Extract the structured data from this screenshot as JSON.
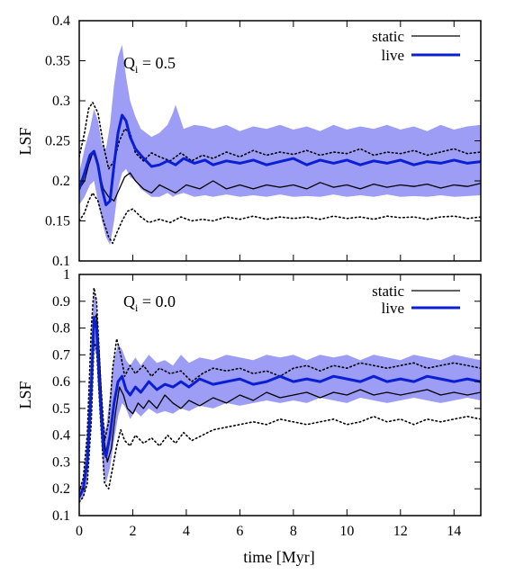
{
  "chart_data": [
    {
      "type": "line",
      "annotation": {
        "main": "Q",
        "sub": "i",
        "rest": " = 0.5"
      },
      "xlabel": "",
      "ylabel": "LSF",
      "xlim": [
        0,
        15
      ],
      "ylim": [
        0.1,
        0.4
      ],
      "xticks": [
        0,
        2,
        4,
        6,
        8,
        10,
        12,
        14
      ],
      "xtick_labels": [],
      "yticks": [
        0.1,
        0.15,
        0.2,
        0.25,
        0.3,
        0.35,
        0.4
      ],
      "ytick_labels": [
        "0.1",
        "0.15",
        "0.2",
        "0.25",
        "0.3",
        "0.35",
        "0.4"
      ],
      "legend_position": "top-right",
      "legend": [
        "static",
        "live"
      ],
      "series": [
        {
          "name": "static",
          "color": "#000000",
          "style": "solid",
          "x": [
            0,
            0.2,
            0.35,
            0.5,
            0.6,
            0.75,
            0.9,
            1.1,
            1.3,
            1.5,
            1.7,
            1.9,
            2.1,
            2.4,
            2.7,
            3.0,
            3.3,
            3.6,
            4.0,
            4.5,
            5.0,
            5.5,
            6.0,
            6.5,
            7.0,
            7.5,
            8.0,
            8.5,
            9.0,
            9.5,
            10.0,
            10.5,
            11.0,
            11.5,
            12.0,
            12.5,
            13.0,
            13.5,
            14.0,
            14.5,
            15.0
          ],
          "y": [
            0.19,
            0.2,
            0.22,
            0.235,
            0.23,
            0.21,
            0.19,
            0.18,
            0.175,
            0.19,
            0.205,
            0.21,
            0.2,
            0.19,
            0.185,
            0.195,
            0.19,
            0.185,
            0.195,
            0.19,
            0.2,
            0.19,
            0.195,
            0.19,
            0.195,
            0.192,
            0.195,
            0.19,
            0.198,
            0.192,
            0.195,
            0.19,
            0.196,
            0.192,
            0.195,
            0.193,
            0.196,
            0.191,
            0.195,
            0.193,
            0.197
          ]
        },
        {
          "name": "static-upper",
          "color": "#000000",
          "style": "dotted",
          "x": [
            0,
            0.2,
            0.35,
            0.5,
            0.7,
            0.9,
            1.1,
            1.3,
            1.5,
            1.7,
            1.9,
            2.1,
            2.4,
            2.7,
            3.0,
            3.4,
            3.8,
            4.2,
            4.6,
            5.0,
            5.5,
            6.0,
            6.5,
            7.0,
            7.5,
            8.0,
            8.5,
            9.0,
            9.5,
            10.0,
            10.5,
            11.0,
            11.5,
            12.0,
            12.5,
            13.0,
            13.5,
            14.0,
            14.5,
            15.0
          ],
          "y": [
            0.23,
            0.26,
            0.29,
            0.298,
            0.285,
            0.245,
            0.215,
            0.225,
            0.25,
            0.265,
            0.26,
            0.235,
            0.225,
            0.235,
            0.23,
            0.225,
            0.235,
            0.225,
            0.232,
            0.228,
            0.236,
            0.23,
            0.238,
            0.232,
            0.236,
            0.233,
            0.238,
            0.232,
            0.236,
            0.234,
            0.24,
            0.232,
            0.236,
            0.234,
            0.238,
            0.232,
            0.236,
            0.24,
            0.234,
            0.236
          ]
        },
        {
          "name": "static-lower",
          "color": "#000000",
          "style": "dotted",
          "x": [
            0,
            0.2,
            0.35,
            0.5,
            0.7,
            0.9,
            1.1,
            1.25,
            1.4,
            1.6,
            1.8,
            2.0,
            2.3,
            2.6,
            3.0,
            3.4,
            3.8,
            4.2,
            4.6,
            5.0,
            5.5,
            6.0,
            6.5,
            7.0,
            7.5,
            8.0,
            8.5,
            9.0,
            9.5,
            10.0,
            10.5,
            11.0,
            11.5,
            12.0,
            12.5,
            13.0,
            13.5,
            14.0,
            14.5,
            15.0
          ],
          "y": [
            0.15,
            0.16,
            0.175,
            0.185,
            0.175,
            0.15,
            0.13,
            0.122,
            0.135,
            0.15,
            0.162,
            0.165,
            0.155,
            0.148,
            0.152,
            0.148,
            0.155,
            0.15,
            0.152,
            0.15,
            0.155,
            0.152,
            0.156,
            0.152,
            0.155,
            0.153,
            0.155,
            0.152,
            0.156,
            0.153,
            0.155,
            0.152,
            0.156,
            0.154,
            0.155,
            0.152,
            0.155,
            0.156,
            0.153,
            0.155
          ]
        },
        {
          "name": "live",
          "color": "#0a1fd1",
          "style": "solid",
          "x": [
            0,
            0.2,
            0.4,
            0.55,
            0.7,
            0.85,
            1.0,
            1.15,
            1.3,
            1.45,
            1.6,
            1.75,
            1.9,
            2.1,
            2.3,
            2.5,
            2.7,
            3.0,
            3.3,
            3.6,
            3.9,
            4.3,
            4.7,
            5.0,
            5.5,
            6.0,
            6.5,
            7.0,
            7.5,
            8.0,
            8.5,
            9.0,
            9.5,
            10.0,
            10.5,
            11.0,
            11.5,
            12.0,
            12.5,
            13.0,
            13.5,
            14.0,
            14.5,
            15.0
          ],
          "y": [
            0.19,
            0.21,
            0.232,
            0.237,
            0.22,
            0.19,
            0.17,
            0.175,
            0.22,
            0.26,
            0.282,
            0.275,
            0.255,
            0.24,
            0.232,
            0.225,
            0.218,
            0.22,
            0.225,
            0.22,
            0.228,
            0.222,
            0.226,
            0.22,
            0.225,
            0.222,
            0.226,
            0.22,
            0.224,
            0.228,
            0.22,
            0.226,
            0.222,
            0.226,
            0.22,
            0.225,
            0.222,
            0.226,
            0.22,
            0.224,
            0.222,
            0.226,
            0.222,
            0.224
          ]
        }
      ],
      "band": {
        "name": "live-range",
        "color": "#8c8cf5",
        "x": [
          0,
          0.2,
          0.4,
          0.55,
          0.7,
          0.85,
          1.0,
          1.15,
          1.3,
          1.45,
          1.6,
          1.75,
          1.9,
          2.1,
          2.3,
          2.5,
          2.7,
          3.0,
          3.3,
          3.5,
          3.6,
          3.9,
          4.3,
          4.7,
          5.0,
          5.5,
          6.0,
          6.5,
          7.0,
          7.5,
          8.0,
          8.5,
          9.0,
          9.5,
          10.0,
          10.5,
          11.0,
          11.5,
          12.0,
          12.5,
          13.0,
          13.5,
          14.0,
          14.5,
          15.0
        ],
        "upper": [
          0.21,
          0.24,
          0.265,
          0.29,
          0.275,
          0.245,
          0.24,
          0.27,
          0.32,
          0.355,
          0.37,
          0.33,
          0.3,
          0.28,
          0.265,
          0.26,
          0.255,
          0.26,
          0.27,
          0.285,
          0.295,
          0.265,
          0.27,
          0.268,
          0.265,
          0.27,
          0.262,
          0.268,
          0.265,
          0.27,
          0.264,
          0.268,
          0.262,
          0.27,
          0.264,
          0.268,
          0.265,
          0.27,
          0.264,
          0.268,
          0.262,
          0.27,
          0.264,
          0.268,
          0.27
        ],
        "lower": [
          0.17,
          0.18,
          0.195,
          0.2,
          0.175,
          0.15,
          0.13,
          0.12,
          0.15,
          0.19,
          0.21,
          0.215,
          0.205,
          0.2,
          0.19,
          0.185,
          0.18,
          0.18,
          0.185,
          0.18,
          0.182,
          0.185,
          0.18,
          0.182,
          0.18,
          0.183,
          0.18,
          0.182,
          0.18,
          0.183,
          0.18,
          0.181,
          0.18,
          0.183,
          0.18,
          0.182,
          0.18,
          0.183,
          0.18,
          0.181,
          0.18,
          0.182,
          0.18,
          0.181,
          0.182
        ]
      }
    },
    {
      "type": "line",
      "annotation": {
        "main": "Q",
        "sub": "i",
        "rest": " = 0.0"
      },
      "xlabel": "time [Myr]",
      "ylabel": "LSF",
      "xlim": [
        0,
        15
      ],
      "ylim": [
        0.1,
        1.0
      ],
      "xticks": [
        0,
        2,
        4,
        6,
        8,
        10,
        12,
        14
      ],
      "xtick_labels": [
        "0",
        "2",
        "4",
        "6",
        "8",
        "10",
        "12",
        "14"
      ],
      "yticks": [
        0.1,
        0.2,
        0.3,
        0.4,
        0.5,
        0.6,
        0.7,
        0.8,
        0.9,
        1.0
      ],
      "ytick_labels": [
        "0.1",
        "0.2",
        "0.3",
        "0.4",
        "0.5",
        "0.6",
        "0.7",
        "0.8",
        "0.9",
        "1"
      ],
      "legend_position": "top-right",
      "legend": [
        "static",
        "live"
      ],
      "series": [
        {
          "name": "static",
          "color": "#000000",
          "style": "solid",
          "x": [
            0,
            0.15,
            0.3,
            0.45,
            0.55,
            0.65,
            0.75,
            0.9,
            1.05,
            1.2,
            1.35,
            1.5,
            1.65,
            1.8,
            2.0,
            2.2,
            2.4,
            2.6,
            2.9,
            3.2,
            3.5,
            3.8,
            4.1,
            4.5,
            5.0,
            5.5,
            6.0,
            6.5,
            7.0,
            7.5,
            8.0,
            8.5,
            9.0,
            9.5,
            10.0,
            10.5,
            11.0,
            11.5,
            12.0,
            12.5,
            13.0,
            13.5,
            14.0,
            14.5,
            15.0
          ],
          "y": [
            0.17,
            0.2,
            0.3,
            0.55,
            0.83,
            0.85,
            0.7,
            0.4,
            0.3,
            0.35,
            0.48,
            0.58,
            0.55,
            0.5,
            0.48,
            0.52,
            0.5,
            0.53,
            0.5,
            0.55,
            0.52,
            0.5,
            0.53,
            0.51,
            0.54,
            0.52,
            0.55,
            0.53,
            0.56,
            0.54,
            0.55,
            0.56,
            0.54,
            0.56,
            0.55,
            0.57,
            0.55,
            0.56,
            0.55,
            0.56,
            0.57,
            0.55,
            0.56,
            0.55,
            0.56
          ]
        },
        {
          "name": "static-upper",
          "color": "#000000",
          "style": "dotted",
          "x": [
            0,
            0.15,
            0.3,
            0.45,
            0.55,
            0.65,
            0.8,
            0.95,
            1.1,
            1.25,
            1.4,
            1.55,
            1.7,
            1.9,
            2.1,
            2.4,
            2.7,
            3.0,
            3.4,
            3.8,
            4.2,
            4.6,
            5.0,
            5.5,
            6.0,
            6.5,
            7.0,
            7.5,
            8.0,
            8.5,
            9.0,
            9.5,
            10.0,
            10.5,
            11.0,
            11.5,
            12.0,
            12.5,
            13.0,
            13.5,
            14.0,
            14.5,
            15.0
          ],
          "y": [
            0.19,
            0.24,
            0.4,
            0.8,
            0.95,
            0.9,
            0.6,
            0.38,
            0.45,
            0.65,
            0.76,
            0.7,
            0.62,
            0.66,
            0.63,
            0.66,
            0.62,
            0.65,
            0.63,
            0.64,
            0.6,
            0.63,
            0.65,
            0.64,
            0.65,
            0.63,
            0.64,
            0.62,
            0.65,
            0.66,
            0.64,
            0.66,
            0.65,
            0.67,
            0.66,
            0.65,
            0.66,
            0.67,
            0.65,
            0.66,
            0.67,
            0.66,
            0.65
          ]
        },
        {
          "name": "static-lower",
          "color": "#000000",
          "style": "dotted",
          "x": [
            0,
            0.15,
            0.3,
            0.45,
            0.55,
            0.65,
            0.8,
            0.95,
            1.1,
            1.25,
            1.4,
            1.55,
            1.7,
            1.9,
            2.1,
            2.4,
            2.7,
            3.0,
            3.3,
            3.6,
            3.9,
            4.2,
            4.6,
            5.0,
            5.5,
            6.0,
            6.5,
            7.0,
            7.5,
            8.0,
            8.5,
            9.0,
            9.5,
            10.0,
            10.5,
            11.0,
            11.5,
            12.0,
            12.5,
            13.0,
            13.5,
            14.0,
            14.5,
            15.0
          ],
          "y": [
            0.15,
            0.17,
            0.22,
            0.45,
            0.75,
            0.72,
            0.45,
            0.22,
            0.2,
            0.28,
            0.36,
            0.42,
            0.38,
            0.36,
            0.4,
            0.37,
            0.39,
            0.36,
            0.4,
            0.37,
            0.41,
            0.38,
            0.4,
            0.42,
            0.43,
            0.44,
            0.45,
            0.44,
            0.46,
            0.45,
            0.44,
            0.45,
            0.46,
            0.44,
            0.45,
            0.47,
            0.45,
            0.46,
            0.44,
            0.46,
            0.45,
            0.46,
            0.47,
            0.46
          ]
        },
        {
          "name": "live",
          "color": "#0a1fd1",
          "style": "solid",
          "x": [
            0,
            0.15,
            0.3,
            0.45,
            0.55,
            0.65,
            0.75,
            0.9,
            1.0,
            1.15,
            1.3,
            1.45,
            1.6,
            1.75,
            1.9,
            2.1,
            2.3,
            2.6,
            2.9,
            3.2,
            3.5,
            3.8,
            4.1,
            4.5,
            5.0,
            5.5,
            6.0,
            6.5,
            7.0,
            7.5,
            8.0,
            8.5,
            9.0,
            9.5,
            10.0,
            10.5,
            11.0,
            11.5,
            12.0,
            12.5,
            13.0,
            13.5,
            14.0,
            14.5,
            15.0
          ],
          "y": [
            0.17,
            0.2,
            0.3,
            0.58,
            0.84,
            0.8,
            0.6,
            0.35,
            0.32,
            0.4,
            0.52,
            0.6,
            0.62,
            0.57,
            0.55,
            0.58,
            0.56,
            0.6,
            0.57,
            0.59,
            0.58,
            0.6,
            0.58,
            0.61,
            0.59,
            0.6,
            0.61,
            0.59,
            0.6,
            0.62,
            0.6,
            0.61,
            0.6,
            0.62,
            0.61,
            0.6,
            0.62,
            0.6,
            0.61,
            0.6,
            0.62,
            0.61,
            0.6,
            0.61,
            0.6
          ]
        }
      ],
      "band": {
        "name": "live-range",
        "color": "#8c8cf5",
        "x": [
          0,
          0.15,
          0.3,
          0.45,
          0.55,
          0.65,
          0.75,
          0.9,
          1.0,
          1.15,
          1.3,
          1.45,
          1.6,
          1.75,
          1.9,
          2.1,
          2.3,
          2.6,
          2.9,
          3.2,
          3.5,
          3.8,
          4.1,
          4.5,
          5.0,
          5.5,
          6.0,
          6.5,
          7.0,
          7.5,
          8.0,
          8.5,
          9.0,
          9.5,
          10.0,
          10.5,
          11.0,
          11.5,
          12.0,
          12.5,
          13.0,
          13.5,
          14.0,
          14.5,
          15.0
        ],
        "upper": [
          0.19,
          0.24,
          0.38,
          0.75,
          0.93,
          0.9,
          0.72,
          0.45,
          0.42,
          0.55,
          0.68,
          0.74,
          0.72,
          0.68,
          0.66,
          0.69,
          0.66,
          0.7,
          0.67,
          0.68,
          0.66,
          0.7,
          0.67,
          0.69,
          0.68,
          0.7,
          0.69,
          0.68,
          0.7,
          0.69,
          0.7,
          0.68,
          0.7,
          0.69,
          0.7,
          0.68,
          0.7,
          0.69,
          0.68,
          0.7,
          0.69,
          0.68,
          0.7,
          0.69,
          0.68
        ],
        "lower": [
          0.15,
          0.17,
          0.23,
          0.45,
          0.72,
          0.7,
          0.5,
          0.27,
          0.22,
          0.28,
          0.38,
          0.47,
          0.52,
          0.5,
          0.46,
          0.49,
          0.47,
          0.5,
          0.48,
          0.49,
          0.48,
          0.5,
          0.49,
          0.51,
          0.5,
          0.52,
          0.51,
          0.52,
          0.53,
          0.52,
          0.53,
          0.52,
          0.54,
          0.53,
          0.52,
          0.54,
          0.53,
          0.52,
          0.53,
          0.54,
          0.53,
          0.52,
          0.53,
          0.54,
          0.53
        ]
      }
    }
  ]
}
